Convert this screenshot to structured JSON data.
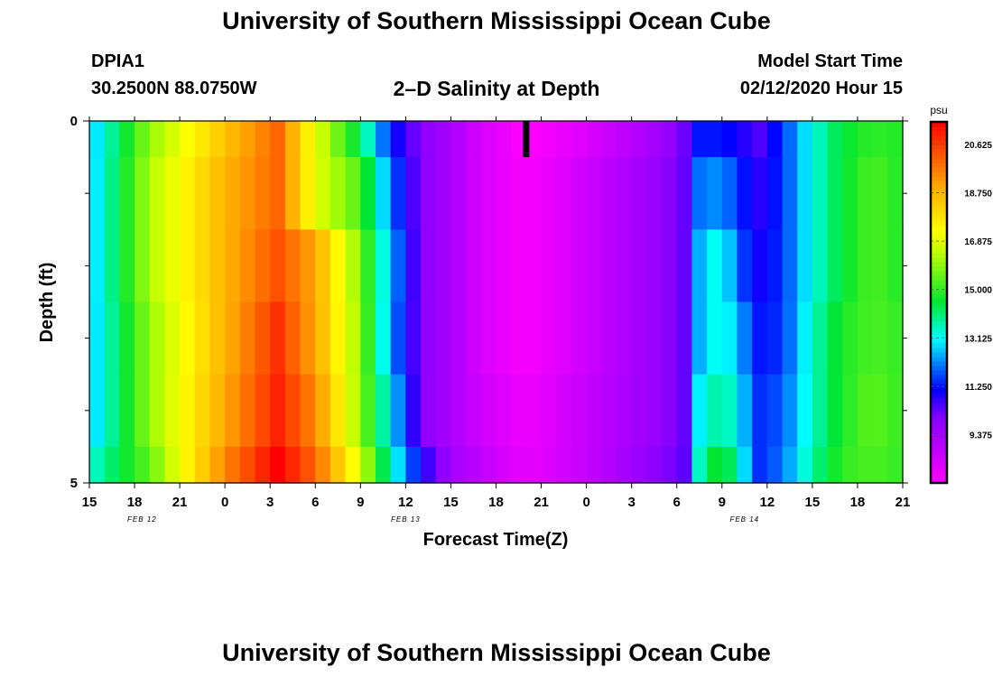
{
  "page": {
    "title_top": "University of Southern Mississippi Ocean Cube",
    "title_bottom": "University of Southern Mississippi Ocean Cube",
    "station_id": "DPIA1",
    "station_coords": "30.2500N 88.0750W",
    "plot_title": "2–D Salinity at Depth",
    "model_start_label": "Model Start Time",
    "model_start_value": "02/12/2020 Hour 15"
  },
  "chart_data": {
    "type": "heatmap",
    "title": "2–D Salinity at Depth",
    "xlabel": "Forecast Time(Z)",
    "ylabel": "Depth (ft)",
    "x_ticks": [
      "15",
      "18",
      "21",
      "0",
      "3",
      "6",
      "9",
      "12",
      "15",
      "18",
      "21",
      "0",
      "3",
      "6",
      "9",
      "12",
      "15",
      "18",
      "21"
    ],
    "x_range_hours": [
      0,
      54
    ],
    "date_labels": [
      {
        "label": "FEB 12",
        "hour": 3.5
      },
      {
        "label": "FEB 13",
        "hour": 21
      },
      {
        "label": "FEB 14",
        "hour": 43.5
      }
    ],
    "y_range_ft": [
      0,
      5
    ],
    "y_tick_labels": [
      {
        "depth": 0,
        "label": "0"
      },
      {
        "depth": 5,
        "label": "5"
      }
    ],
    "y_minor_ticks": [
      1,
      2,
      3,
      4
    ],
    "colorbar": {
      "unit": "psu",
      "min": 7.5,
      "max": 21.5,
      "tick_values": [
        20.625,
        18.75,
        16.875,
        15.0,
        13.125,
        11.25,
        9.375
      ],
      "tick_labels": [
        "20.625",
        "18.750",
        "16.875",
        "15.000",
        "13.125",
        "11.250",
        "9.375"
      ]
    },
    "current_time_marker": {
      "hour": 29,
      "depth_from": 0,
      "depth_to": 0.5
    },
    "profile_hours": [
      0,
      4,
      9,
      12.5,
      15,
      18,
      20,
      22,
      24,
      26,
      29,
      32,
      38,
      40,
      40.5,
      42,
      43,
      44.5,
      46,
      48,
      50,
      52,
      54
    ],
    "profiles_psu": [
      [
        12.5,
        12.5,
        12.5,
        12.5,
        12.5,
        13.3
      ],
      [
        16.0,
        16.3,
        16.3,
        16.0,
        16.0,
        15.5
      ],
      [
        18.5,
        18.8,
        18.8,
        18.8,
        19.0,
        19.5
      ],
      [
        20.0,
        20.0,
        20.3,
        20.8,
        21.0,
        21.5
      ],
      [
        17.0,
        17.0,
        19.0,
        19.0,
        19.5,
        20.0
      ],
      [
        14.3,
        15.3,
        15.8,
        16.0,
        16.0,
        16.8
      ],
      [
        11.3,
        12.0,
        12.5,
        12.3,
        13.0,
        13.5
      ],
      [
        10.0,
        10.0,
        10.0,
        10.0,
        10.0,
        11.0
      ],
      [
        9.3,
        9.3,
        9.3,
        9.3,
        9.3,
        9.5
      ],
      [
        8.3,
        8.3,
        8.3,
        8.3,
        8.5,
        8.8
      ],
      [
        7.5,
        7.6,
        7.6,
        7.6,
        7.8,
        8.0
      ],
      [
        8.0,
        8.3,
        8.3,
        8.3,
        8.5,
        8.5
      ],
      [
        9.5,
        9.8,
        9.8,
        9.8,
        9.8,
        10.0
      ],
      [
        10.5,
        10.5,
        10.5,
        10.5,
        10.5,
        10.5
      ],
      [
        11.3,
        12.0,
        12.5,
        12.5,
        13.0,
        13.5
      ],
      [
        11.3,
        12.3,
        13.5,
        13.5,
        14.0,
        15.0
      ],
      [
        11.0,
        11.5,
        11.8,
        12.5,
        13.0,
        13.5
      ],
      [
        10.5,
        10.8,
        11.0,
        11.3,
        11.5,
        11.5
      ],
      [
        11.5,
        11.5,
        11.5,
        11.5,
        11.8,
        12.0
      ],
      [
        13.3,
        13.3,
        13.3,
        13.5,
        13.5,
        13.8
      ],
      [
        14.5,
        14.5,
        14.5,
        14.8,
        14.8,
        15.0
      ],
      [
        15.0,
        15.3,
        15.3,
        15.3,
        15.5,
        15.3
      ],
      [
        14.8,
        14.8,
        14.8,
        15.0,
        15.0,
        15.0
      ]
    ]
  }
}
